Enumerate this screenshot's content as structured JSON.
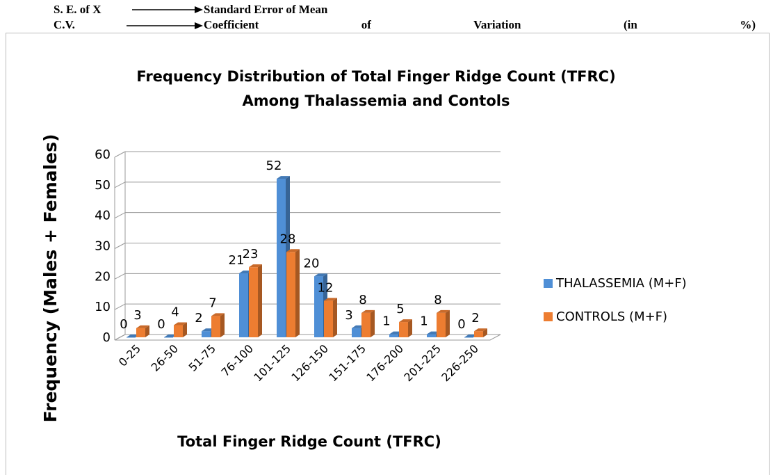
{
  "header": {
    "rows": [
      {
        "term": "S. E. of X",
        "meaning": "Standard Error of Mean"
      },
      {
        "term": "C.V.",
        "meaning": "Coefficient of Variation (in %)"
      }
    ]
  },
  "chart_data": {
    "type": "bar3d",
    "title": "Frequency Distribution of Total Finger Ridge Count (TFRC)",
    "subtitle": "Among  Thalassemia and Contols",
    "x_label": "Total Finger Ridge Count (TFRC)",
    "y_label": "Frequency (Males + Females)",
    "categories": [
      "0-25",
      "26-50",
      "51-75",
      "76-100",
      "101-125",
      "126-150",
      "151-175",
      "176-200",
      "201-225",
      "226-250"
    ],
    "series": [
      {
        "name": "THALASSEMIA (M+F)",
        "color": "#4f8fd6",
        "values": [
          0,
          0,
          2,
          21,
          52,
          20,
          3,
          1,
          1,
          0
        ]
      },
      {
        "name": "CONTROLS (M+F)",
        "color": "#ed7d31",
        "values": [
          3,
          4,
          7,
          23,
          28,
          12,
          8,
          5,
          8,
          2
        ]
      }
    ],
    "ylim": [
      0,
      60
    ],
    "yticks": [
      0,
      10,
      20,
      30,
      40,
      50,
      60
    ],
    "grid": true,
    "legend": "right"
  }
}
